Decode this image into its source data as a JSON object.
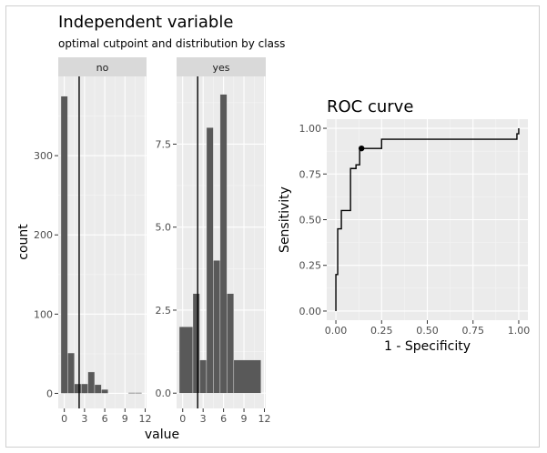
{
  "chart_data": [
    {
      "type": "bar",
      "title": "Independent variable",
      "subtitle": "optimal cutpoint and distribution by class",
      "xlabel": "value",
      "ylabel": "count",
      "x_ticks": [
        "0",
        "3",
        "6",
        "9",
        "12"
      ],
      "xlim": [
        -0.9,
        12.2
      ],
      "cutpoint": 2.2,
      "facets": [
        {
          "label": "no",
          "ylim": [
            -19,
            400
          ],
          "y_ticks": [
            0,
            100,
            200,
            300
          ],
          "y_tick_labels": [
            "0",
            "100",
            "200",
            "300"
          ],
          "bins": [
            {
              "x0": -0.5,
              "x1": 0.5,
              "count": 375
            },
            {
              "x0": 0.5,
              "x1": 1.5,
              "count": 51
            },
            {
              "x0": 1.5,
              "x1": 2.5,
              "count": 12
            },
            {
              "x0": 2.5,
              "x1": 3.5,
              "count": 12
            },
            {
              "x0": 3.5,
              "x1": 4.5,
              "count": 27
            },
            {
              "x0": 4.5,
              "x1": 5.5,
              "count": 11
            },
            {
              "x0": 5.5,
              "x1": 6.5,
              "count": 5
            },
            {
              "x0": 9.5,
              "x1": 10.5,
              "count": 1
            },
            {
              "x0": 10.5,
              "x1": 11.5,
              "count": 1
            }
          ]
        },
        {
          "label": "yes",
          "ylim": [
            -0.46,
            9.54
          ],
          "y_ticks": [
            0,
            2.5,
            5,
            7.5
          ],
          "y_tick_labels": [
            "0.0",
            "2.5",
            "5.0",
            "7.5"
          ],
          "bins": [
            {
              "x0": -0.5,
              "x1": 1.5,
              "count": 2
            },
            {
              "x0": 1.5,
              "x1": 2.5,
              "count": 3
            },
            {
              "x0": 2.5,
              "x1": 3.5,
              "count": 1
            },
            {
              "x0": 3.5,
              "x1": 4.5,
              "count": 8
            },
            {
              "x0": 4.5,
              "x1": 5.5,
              "count": 4
            },
            {
              "x0": 5.5,
              "x1": 6.5,
              "count": 9
            },
            {
              "x0": 6.5,
              "x1": 7.5,
              "count": 3
            },
            {
              "x0": 7.5,
              "x1": 11.5,
              "count": 1
            }
          ]
        }
      ]
    },
    {
      "type": "line",
      "title": "ROC curve",
      "xlabel": "1 - Specificity",
      "ylabel": "Sensitivity",
      "xlim": [
        -0.05,
        1.05
      ],
      "ylim": [
        -0.05,
        1.05
      ],
      "x_ticks": [
        0,
        0.25,
        0.5,
        0.75,
        1
      ],
      "x_tick_labels": [
        "0.00",
        "0.25",
        "0.50",
        "0.75",
        "1.00"
      ],
      "y_ticks": [
        0,
        0.25,
        0.5,
        0.75,
        1
      ],
      "y_tick_labels": [
        "0.00",
        "0.25",
        "0.50",
        "0.75",
        "1.00"
      ],
      "points": [
        [
          0.0,
          0.0
        ],
        [
          0.0,
          0.2
        ],
        [
          0.01,
          0.2
        ],
        [
          0.01,
          0.45
        ],
        [
          0.03,
          0.45
        ],
        [
          0.03,
          0.55
        ],
        [
          0.08,
          0.55
        ],
        [
          0.08,
          0.78
        ],
        [
          0.11,
          0.78
        ],
        [
          0.11,
          0.8
        ],
        [
          0.13,
          0.8
        ],
        [
          0.13,
          0.89
        ],
        [
          0.25,
          0.89
        ],
        [
          0.25,
          0.94
        ],
        [
          0.99,
          0.94
        ],
        [
          0.99,
          0.97
        ],
        [
          1.0,
          0.97
        ],
        [
          1.0,
          1.0
        ]
      ],
      "optimal_point": [
        0.14,
        0.89
      ]
    }
  ]
}
